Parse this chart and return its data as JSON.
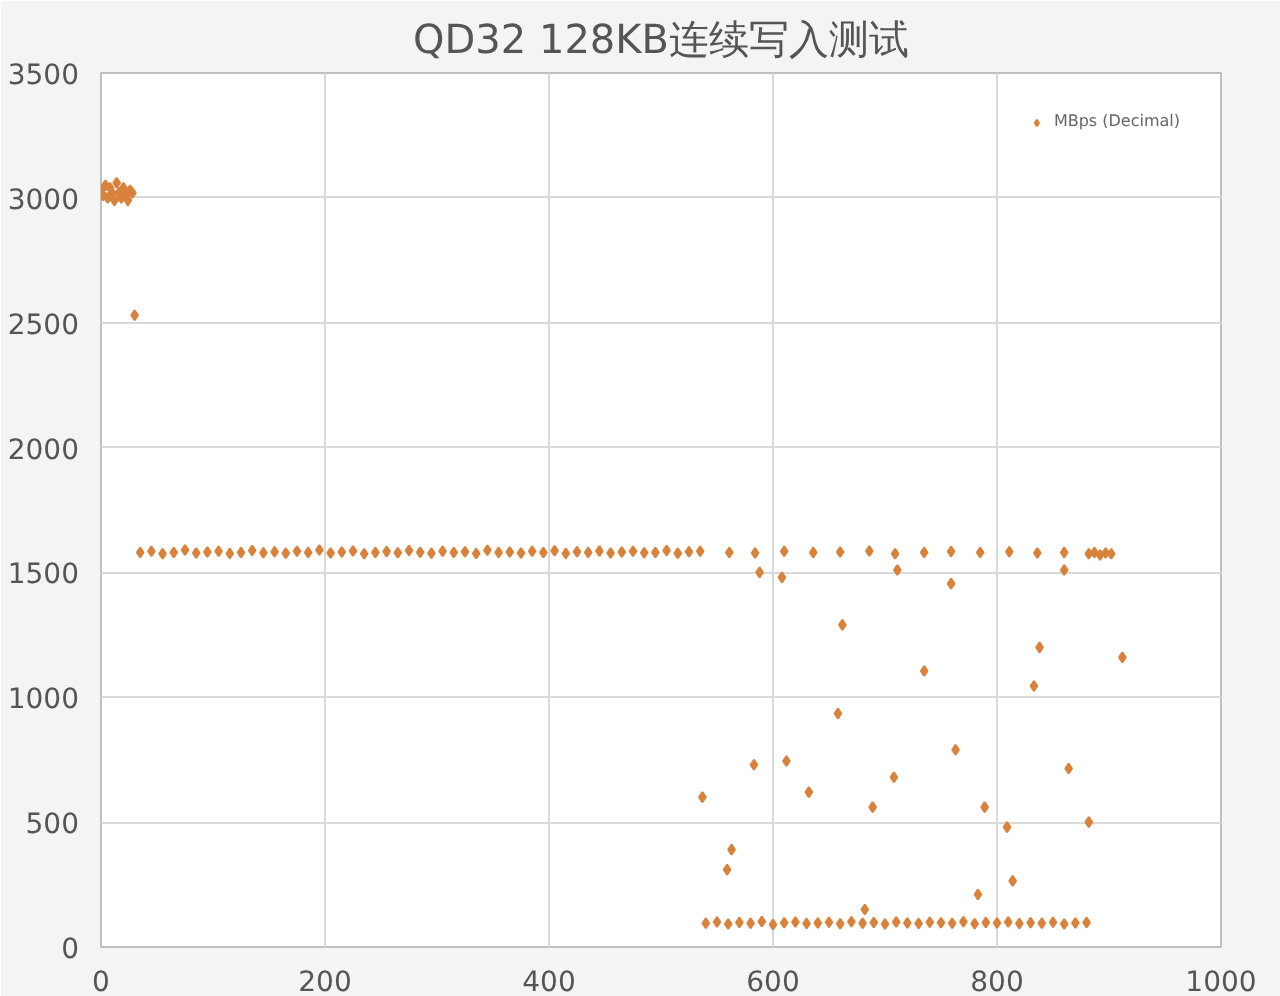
{
  "chart_data": {
    "type": "scatter",
    "title": "QD32 128KB连续写入测试",
    "xlim": [
      0,
      1000
    ],
    "ylim": [
      0,
      3500
    ],
    "xticks": [
      0,
      200,
      400,
      600,
      800,
      1000
    ],
    "yticks": [
      0,
      500,
      1000,
      1500,
      2000,
      2500,
      3000,
      3500
    ],
    "grid": true,
    "legend": "top right",
    "marker": "diamond",
    "series": [
      {
        "name": "MBps (Decimal)",
        "color": "#d9823b",
        "x": [
          0,
          2,
          4,
          6,
          8,
          10,
          12,
          14,
          16,
          18,
          20,
          22,
          24,
          26,
          28,
          30,
          35,
          45,
          55,
          65,
          75,
          85,
          95,
          105,
          115,
          125,
          135,
          145,
          155,
          165,
          175,
          185,
          195,
          205,
          215,
          225,
          235,
          245,
          255,
          265,
          275,
          285,
          295,
          305,
          315,
          325,
          335,
          345,
          355,
          365,
          375,
          385,
          395,
          405,
          415,
          425,
          435,
          445,
          455,
          465,
          475,
          485,
          495,
          505,
          515,
          525,
          535,
          540,
          550,
          560,
          570,
          580,
          590,
          600,
          610,
          620,
          630,
          640,
          650,
          660,
          670,
          680,
          690,
          700,
          710,
          720,
          730,
          740,
          750,
          760,
          770,
          780,
          790,
          800,
          810,
          820,
          830,
          840,
          850,
          860,
          870,
          880,
          561,
          584,
          610,
          636,
          660,
          686,
          709,
          735,
          759,
          785,
          811,
          836,
          860,
          537,
          559,
          563,
          583,
          588,
          608,
          612,
          632,
          658,
          662,
          682,
          689,
          708,
          711,
          735,
          759,
          763,
          783,
          789,
          809,
          814,
          833,
          838,
          860,
          864,
          882,
          882,
          887,
          892,
          897,
          902,
          912
        ],
        "values": [
          3030,
          3010,
          3050,
          3000,
          3040,
          3020,
          2990,
          3060,
          3020,
          3000,
          3040,
          3010,
          2990,
          3030,
          3020,
          2530,
          1580,
          1585,
          1575,
          1580,
          1590,
          1578,
          1582,
          1585,
          1576,
          1580,
          1588,
          1579,
          1583,
          1577,
          1585,
          1580,
          1590,
          1578,
          1582,
          1586,
          1575,
          1580,
          1584,
          1579,
          1588,
          1581,
          1577,
          1585,
          1580,
          1583,
          1576,
          1589,
          1580,
          1582,
          1578,
          1585,
          1580,
          1587,
          1576,
          1583,
          1580,
          1586,
          1578,
          1582,
          1585,
          1579,
          1580,
          1588,
          1577,
          1583,
          1585,
          95,
          100,
          92,
          98,
          95,
          102,
          90,
          97,
          100,
          94,
          96,
          99,
          93,
          101,
          95,
          98,
          92,
          100,
          96,
          94,
          99,
          97,
          95,
          101,
          93,
          98,
          96,
          100,
          94,
          97,
          95,
          99,
          92,
          96,
          98,
          1580,
          1578,
          1585,
          1580,
          1582,
          1586,
          1575,
          1580,
          1584,
          1580,
          1583,
          1578,
          1580,
          600,
          310,
          390,
          730,
          1500,
          1480,
          745,
          620,
          935,
          1290,
          150,
          560,
          680,
          1510,
          1105,
          1455,
          790,
          210,
          560,
          480,
          265,
          1045,
          1200,
          1510,
          715,
          500,
          1575,
          1580,
          1570,
          1578,
          1575,
          1160
        ]
      }
    ]
  }
}
